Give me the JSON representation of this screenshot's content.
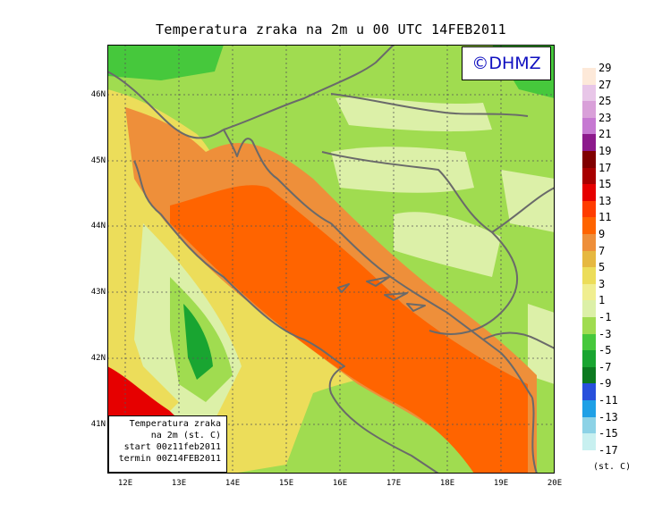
{
  "title": "Temperatura zraka na 2m u 00 UTC 14FEB2011",
  "logo": "©DHMZ",
  "info_box": {
    "line1": "Temperatura zraka",
    "line2": "na 2m (st. C)",
    "line3": "start 00z11feb2011",
    "line4": "termin 00Z14FEB2011"
  },
  "latitude_labels": [
    "46N",
    "45N",
    "44N",
    "43N",
    "42N",
    "41N"
  ],
  "longitude_labels": [
    "12E",
    "13E",
    "14E",
    "15E",
    "16E",
    "17E",
    "18E",
    "19E",
    "20E"
  ],
  "legend": {
    "units": "(st. C)",
    "labels": [
      "29",
      "27",
      "25",
      "23",
      "21",
      "19",
      "17",
      "15",
      "13",
      "11",
      "9",
      "7",
      "5",
      "3",
      "1",
      "-1",
      "-3",
      "-5",
      "-7",
      "-9",
      "-11",
      "-13",
      "-15",
      "-17"
    ],
    "colors": [
      "#fde9d9",
      "#e8c6e8",
      "#d9a0d9",
      "#c679d2",
      "#8c1a8c",
      "#800000",
      "#a80000",
      "#e60000",
      "#ff3c00",
      "#ff6400",
      "#ee8f3a",
      "#e6b840",
      "#ecdd5a",
      "#f0ee90",
      "#dcf0a8",
      "#a0dc50",
      "#46c83c",
      "#19a531",
      "#0c7a20",
      "#2850dc",
      "#1ea0e6",
      "#8cd2e6",
      "#c8f0f0",
      "#ffffff"
    ]
  },
  "colors": {
    "sea_warm": "#ff6400",
    "coast": "#ee8f3a",
    "mild": "#ecdd5a",
    "cool": "#dcf0a8",
    "cold": "#a0dc50",
    "frost": "#46c83c",
    "deep_frost": "#19a531",
    "hot": "#e60000",
    "border": "#6a6a6a"
  }
}
